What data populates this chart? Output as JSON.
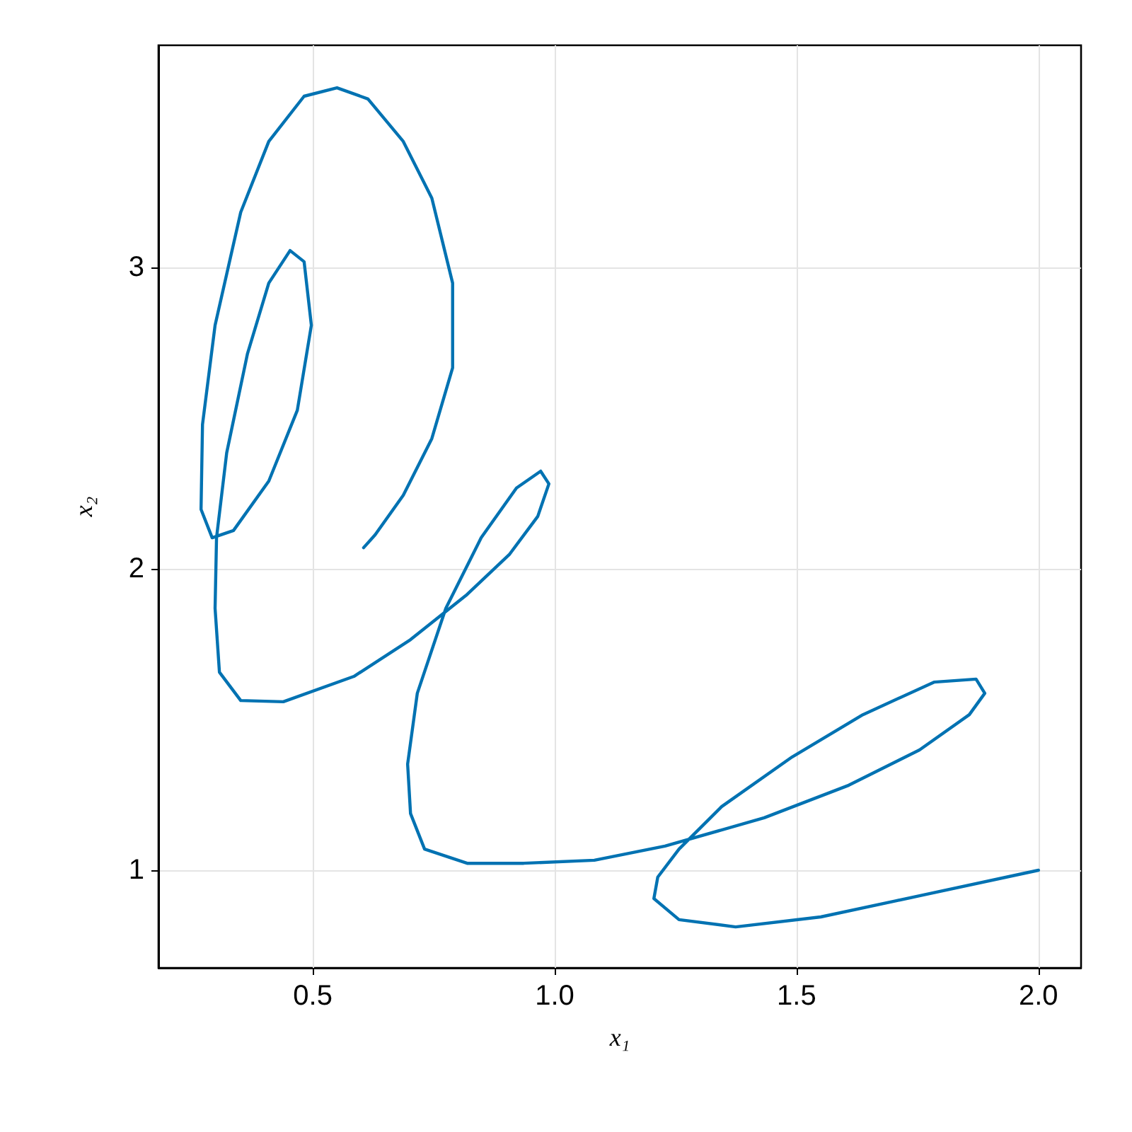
{
  "chart_data": {
    "type": "line",
    "xlabel": "x₁",
    "ylabel": "x₂",
    "xlim": [
      0.181,
      2.088
    ],
    "ylim": [
      0.676,
      3.737
    ],
    "xticks": [
      {
        "value": 0.5,
        "label": "0.5"
      },
      {
        "value": 1,
        "label": "1.0"
      },
      {
        "value": 1.5,
        "label": "1.5"
      },
      {
        "value": 2,
        "label": "2.0"
      }
    ],
    "yticks": [
      1,
      2,
      3
    ],
    "grid": true,
    "marker": "none",
    "line_style": "solid",
    "series": [
      {
        "color": "#0072b2",
        "x": [
          2.0,
          1.754,
          1.55,
          1.374,
          1.257,
          1.205,
          1.213,
          1.257,
          1.345,
          1.491,
          1.637,
          1.784,
          1.871,
          1.889,
          1.857,
          1.754,
          1.608,
          1.433,
          1.228,
          1.082,
          0.936,
          0.819,
          0.731,
          0.702,
          0.696,
          0.716,
          0.775,
          0.848,
          0.921,
          0.971,
          0.988,
          0.965,
          0.906,
          0.819,
          0.702,
          0.585,
          0.439,
          0.351,
          0.307,
          0.298,
          0.301,
          0.322,
          0.365,
          0.409,
          0.453,
          0.482,
          0.497,
          0.468,
          0.409,
          0.336,
          0.292,
          0.269,
          0.272,
          0.298,
          0.351,
          0.409,
          0.482,
          0.55,
          0.614,
          0.687,
          0.746,
          0.789,
          0.789,
          0.746,
          0.687,
          0.629,
          0.605
        ],
        "values": [
          1.0,
          0.915,
          0.845,
          0.812,
          0.836,
          0.906,
          0.977,
          1.07,
          1.211,
          1.376,
          1.516,
          1.624,
          1.634,
          1.587,
          1.516,
          1.399,
          1.282,
          1.174,
          1.08,
          1.033,
          1.023,
          1.023,
          1.07,
          1.188,
          1.352,
          1.587,
          1.869,
          2.103,
          2.268,
          2.324,
          2.282,
          2.174,
          2.047,
          1.915,
          1.765,
          1.643,
          1.559,
          1.563,
          1.657,
          1.869,
          2.103,
          2.385,
          2.714,
          2.948,
          3.056,
          3.019,
          2.808,
          2.526,
          2.291,
          2.127,
          2.103,
          2.197,
          2.479,
          2.808,
          3.183,
          3.418,
          3.568,
          3.596,
          3.559,
          3.418,
          3.23,
          2.948,
          2.667,
          2.432,
          2.244,
          2.113,
          2.07
        ]
      }
    ]
  }
}
